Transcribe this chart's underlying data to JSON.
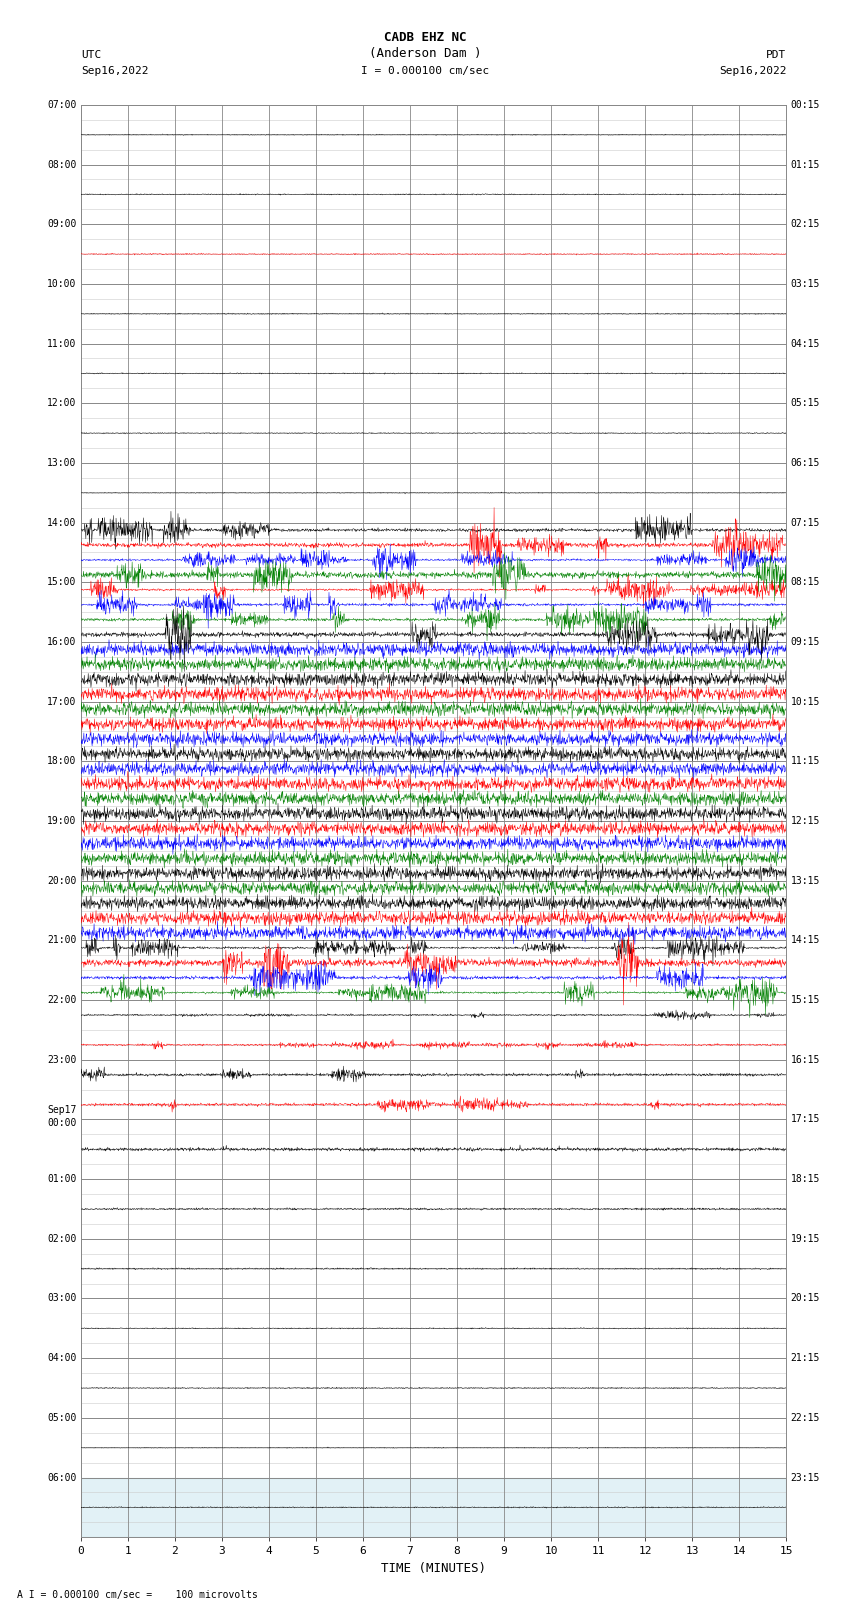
{
  "title_line1": "CADB EHZ NC",
  "title_line2": "(Anderson Dam )",
  "title_scale": "I = 0.000100 cm/sec",
  "left_label_top": "UTC",
  "left_label_date": "Sep16,2022",
  "right_label_top": "PDT",
  "right_label_date": "Sep16,2022",
  "bottom_label": "TIME (MINUTES)",
  "bottom_note": "A I = 0.000100 cm/sec =    100 microvolts",
  "utc_labels": [
    "07:00",
    "08:00",
    "09:00",
    "10:00",
    "11:00",
    "12:00",
    "13:00",
    "14:00",
    "15:00",
    "16:00",
    "17:00",
    "18:00",
    "19:00",
    "20:00",
    "21:00",
    "22:00",
    "23:00",
    "Sep17\n00:00",
    "01:00",
    "02:00",
    "03:00",
    "04:00",
    "05:00",
    "06:00"
  ],
  "pdt_labels": [
    "00:15",
    "01:15",
    "02:15",
    "03:15",
    "04:15",
    "05:15",
    "06:15",
    "07:15",
    "08:15",
    "09:15",
    "10:15",
    "11:15",
    "12:15",
    "13:15",
    "14:15",
    "15:15",
    "16:15",
    "17:15",
    "18:15",
    "19:15",
    "20:15",
    "21:15",
    "22:15",
    "23:15"
  ],
  "n_rows": 24,
  "n_subrows": 4,
  "n_points": 1800,
  "xmin": 0,
  "xmax": 15,
  "background_color": "#ffffff",
  "grid_color": "#888888",
  "subgrid_color": "#cccccc",
  "last_row_color": "#add8e6",
  "row_configs": [
    {
      "colors": [
        "black"
      ],
      "amp": 0.003,
      "noise": 0.001,
      "subrow": 1
    },
    {
      "colors": [
        "black"
      ],
      "amp": 0.003,
      "noise": 0.001,
      "subrow": 1
    },
    {
      "colors": [
        "red",
        "black"
      ],
      "amp": 0.004,
      "noise": 0.001,
      "subrow": 1
    },
    {
      "colors": [
        "black"
      ],
      "amp": 0.003,
      "noise": 0.001,
      "subrow": 1
    },
    {
      "colors": [
        "black"
      ],
      "amp": 0.003,
      "noise": 0.001,
      "subrow": 1
    },
    {
      "colors": [
        "black"
      ],
      "amp": 0.003,
      "noise": 0.001,
      "subrow": 1
    },
    {
      "colors": [
        "black",
        "red"
      ],
      "amp": 0.004,
      "noise": 0.001,
      "subrow": 1
    },
    {
      "colors": [
        "black",
        "red",
        "blue",
        "green"
      ],
      "amp": 0.12,
      "noise": 0.01,
      "subrow": 4
    },
    {
      "colors": [
        "red",
        "blue",
        "green",
        "black"
      ],
      "amp": 0.15,
      "noise": 0.012,
      "subrow": 4
    },
    {
      "colors": [
        "blue",
        "green",
        "black",
        "red"
      ],
      "amp": 0.35,
      "noise": 0.03,
      "subrow": 4
    },
    {
      "colors": [
        "green",
        "red",
        "blue",
        "black"
      ],
      "amp": 0.45,
      "noise": 0.04,
      "subrow": 4
    },
    {
      "colors": [
        "blue",
        "red",
        "green",
        "black"
      ],
      "amp": 0.45,
      "noise": 0.04,
      "subrow": 4
    },
    {
      "colors": [
        "red",
        "blue",
        "green",
        "black"
      ],
      "amp": 0.45,
      "noise": 0.04,
      "subrow": 4
    },
    {
      "colors": [
        "green",
        "black",
        "red",
        "blue"
      ],
      "amp": 0.45,
      "noise": 0.04,
      "subrow": 4
    },
    {
      "colors": [
        "black",
        "red",
        "blue",
        "green"
      ],
      "amp": 0.15,
      "noise": 0.012,
      "subrow": 4
    },
    {
      "colors": [
        "black",
        "red"
      ],
      "amp": 0.04,
      "noise": 0.004,
      "subrow": 2
    },
    {
      "colors": [
        "black",
        "red"
      ],
      "amp": 0.06,
      "noise": 0.005,
      "subrow": 2
    },
    {
      "colors": [
        "black",
        "red"
      ],
      "amp": 0.015,
      "noise": 0.002,
      "subrow": 1
    },
    {
      "colors": [
        "black",
        "red"
      ],
      "amp": 0.005,
      "noise": 0.001,
      "subrow": 1
    },
    {
      "colors": [
        "black",
        "red"
      ],
      "amp": 0.004,
      "noise": 0.001,
      "subrow": 1
    },
    {
      "colors": [
        "black"
      ],
      "amp": 0.003,
      "noise": 0.001,
      "subrow": 1
    },
    {
      "colors": [
        "black"
      ],
      "amp": 0.003,
      "noise": 0.001,
      "subrow": 1
    },
    {
      "colors": [
        "black"
      ],
      "amp": 0.003,
      "noise": 0.001,
      "subrow": 1
    },
    {
      "colors": [
        "black"
      ],
      "amp": 0.003,
      "noise": 0.001,
      "subrow": 1
    }
  ]
}
